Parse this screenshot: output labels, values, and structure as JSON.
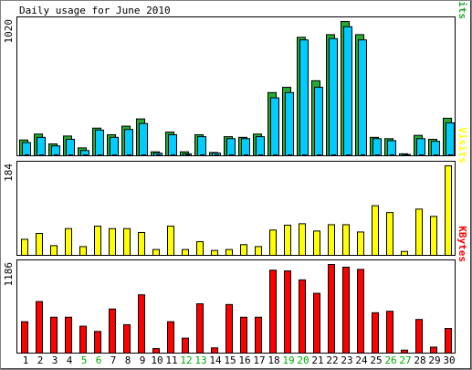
{
  "chart_data": {
    "type": "bar",
    "title": "Daily usage for June 2010",
    "categories": [
      "1",
      "2",
      "3",
      "4",
      "5",
      "6",
      "7",
      "8",
      "9",
      "10",
      "11",
      "12",
      "13",
      "14",
      "15",
      "16",
      "17",
      "18",
      "19",
      "20",
      "21",
      "22",
      "23",
      "24",
      "25",
      "26",
      "27",
      "28",
      "29",
      "30"
    ],
    "weekend_days": [
      "5",
      "6",
      "12",
      "13",
      "19",
      "20",
      "26",
      "27"
    ],
    "panels": [
      {
        "name": "hits-pages-files",
        "ymax_label": "1020",
        "ymax": 1020,
        "series": [
          {
            "name": "Hits",
            "color": "#22aa33",
            "values": [
              120,
              165,
              90,
              150,
              60,
              210,
              160,
              225,
              280,
              30,
              180,
              30,
              160,
              25,
              145,
              140,
              165,
              480,
              520,
              900,
              570,
              920,
              1020,
              920,
              140,
              130,
              15,
              155,
              125,
              285
            ]
          },
          {
            "name": "Files",
            "color": "#00ccff",
            "values": [
              100,
              140,
              75,
              125,
              40,
              195,
              140,
              200,
              245,
              20,
              160,
              15,
              145,
              20,
              130,
              130,
              145,
              440,
              480,
              880,
              520,
              890,
              980,
              880,
              130,
              115,
              10,
              130,
              110,
              250
            ]
          },
          {
            "name": "Pages",
            "color": "#000000",
            "values": [
              5,
              5,
              5,
              5,
              5,
              5,
              5,
              5,
              5,
              5,
              5,
              5,
              5,
              5,
              5,
              5,
              5,
              5,
              5,
              5,
              5,
              5,
              5,
              5,
              5,
              5,
              5,
              5,
              5,
              5
            ]
          }
        ],
        "legend": [
          {
            "text": "Pages",
            "color": "#000000"
          },
          {
            "text": "/",
            "color": "#000000"
          },
          {
            "text": "Files",
            "color": "#00ccff"
          },
          {
            "text": "/",
            "color": "#000000"
          },
          {
            "text": "Hits",
            "color": "#22aa33"
          }
        ]
      },
      {
        "name": "visits",
        "ymax_label": "184",
        "ymax": 184,
        "series": [
          {
            "name": "Visits",
            "color": "#ffff00",
            "values": [
              33,
              45,
              20,
              55,
              18,
              60,
              55,
              55,
              47,
              12,
              60,
              12,
              28,
              10,
              12,
              22,
              18,
              52,
              62,
              65,
              50,
              63,
              63,
              48,
              102,
              88,
              8,
              95,
              80,
              184
            ]
          }
        ],
        "legend": [
          {
            "text": "Visits",
            "color": "#ffff00"
          }
        ]
      },
      {
        "name": "kbytes",
        "ymax_label": "1186",
        "ymax": 1186,
        "series": [
          {
            "name": "KBytes",
            "color": "#ff0000",
            "values": [
              420,
              690,
              480,
              480,
              360,
              290,
              590,
              380,
              780,
              60,
              420,
              200,
              660,
              70,
              650,
              480,
              480,
              1110,
              1100,
              980,
              800,
              1186,
              1150,
              1120,
              540,
              560,
              40,
              450,
              80,
              330
            ]
          }
        ],
        "legend": [
          {
            "text": "KBytes",
            "color": "#ff0000"
          }
        ]
      }
    ],
    "colors": {
      "weekday_label": "#000000",
      "weekend_label": "#00aa00",
      "bar_outline": "#000000"
    }
  }
}
